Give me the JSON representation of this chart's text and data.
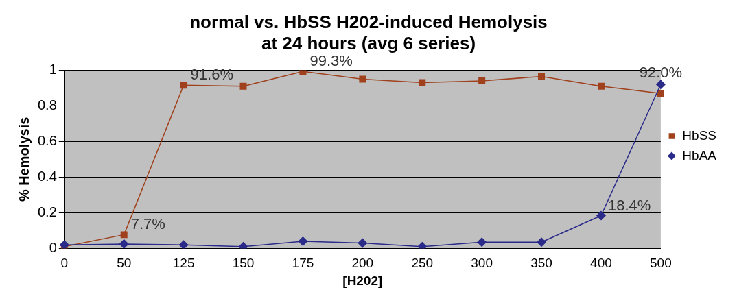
{
  "chart_data": {
    "type": "line",
    "title": [
      "normal vs. HbSS H202-induced Hemolysis",
      "at 24 hours (avg 6 series)"
    ],
    "xlabel": "[H202]",
    "ylabel": "% Hemolysis",
    "categories": [
      "0",
      "50",
      "125",
      "150",
      "175",
      "200",
      "250",
      "300",
      "350",
      "400",
      "500"
    ],
    "series": [
      {
        "name": "HbSS",
        "color": "#a0401c",
        "marker": "square",
        "values": [
          0.01,
          0.077,
          0.916,
          0.91,
          0.993,
          0.95,
          0.93,
          0.94,
          0.965,
          0.91,
          0.87
        ],
        "value_labels": [
          null,
          "7.7%",
          "91.6%",
          null,
          "99.3%",
          null,
          null,
          null,
          null,
          null,
          null
        ]
      },
      {
        "name": "HbAA",
        "color": "#2b2b8a",
        "marker": "diamond",
        "values": [
          0.02,
          0.025,
          0.02,
          0.01,
          0.04,
          0.03,
          0.01,
          0.035,
          0.035,
          0.184,
          0.92
        ],
        "value_labels": [
          null,
          null,
          null,
          null,
          null,
          null,
          null,
          null,
          null,
          "18.4%",
          "92.0%"
        ]
      }
    ],
    "ylim": [
      0,
      1
    ],
    "yticks": [
      0,
      0.2,
      0.4,
      0.6,
      0.8,
      1
    ],
    "grid": "y",
    "legend": "right"
  }
}
